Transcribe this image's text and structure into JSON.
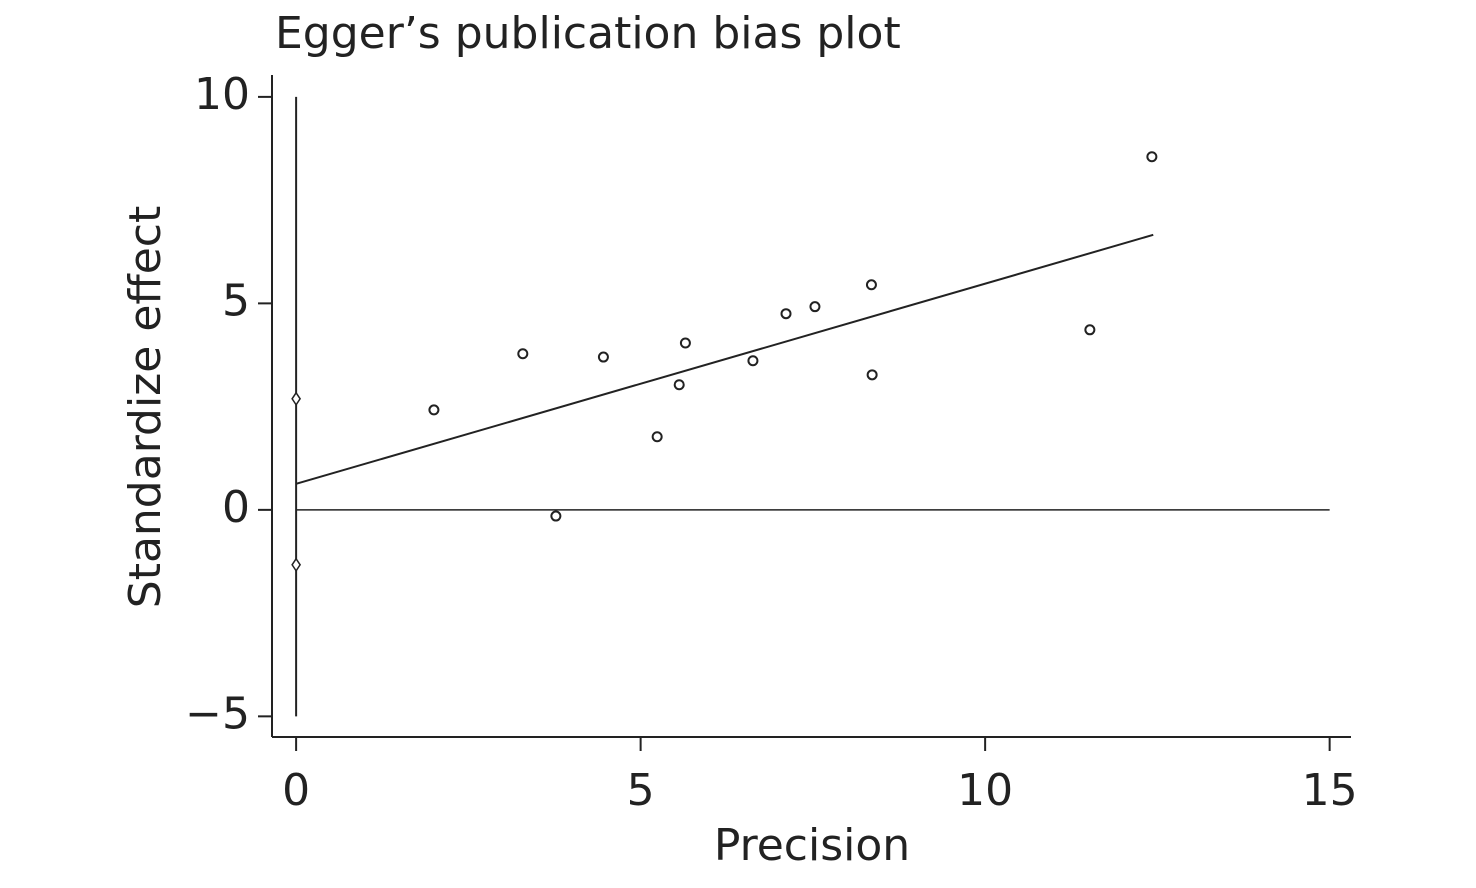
{
  "chart_data": {
    "type": "scatter",
    "title": "Egger’s publication bias plot",
    "x_label": "Precision",
    "y_label": "Standardize effect",
    "points": {
      "x": [
        2.0,
        3.29,
        3.77,
        4.46,
        5.24,
        5.56,
        5.65,
        6.63,
        7.11,
        7.53,
        8.35,
        8.36,
        11.52,
        12.42
      ],
      "y": [
        2.42,
        3.78,
        -0.15,
        3.7,
        1.77,
        3.03,
        4.04,
        3.61,
        4.75,
        4.92,
        5.45,
        3.27,
        4.36,
        8.55
      ]
    },
    "fit_line": {
      "x": [
        0,
        12.44
      ],
      "y": [
        0.63,
        6.66
      ]
    },
    "ci_line": {
      "x": [
        0,
        0
      ],
      "y": [
        10,
        -5
      ]
    },
    "ci_markers": {
      "x": [
        0,
        0
      ],
      "y": [
        2.69,
        -1.33
      ]
    },
    "reference_line": {
      "x": [
        0,
        15
      ],
      "y": [
        0,
        0
      ]
    },
    "color": "#222222",
    "xlim": [
      -0.35,
      15.31
    ],
    "ylim": [
      -5.5,
      10.53
    ],
    "xticks": [
      0,
      5,
      10,
      15
    ],
    "yticks": [
      {
        "value": -5,
        "label": "−5"
      },
      0,
      5,
      10
    ]
  }
}
